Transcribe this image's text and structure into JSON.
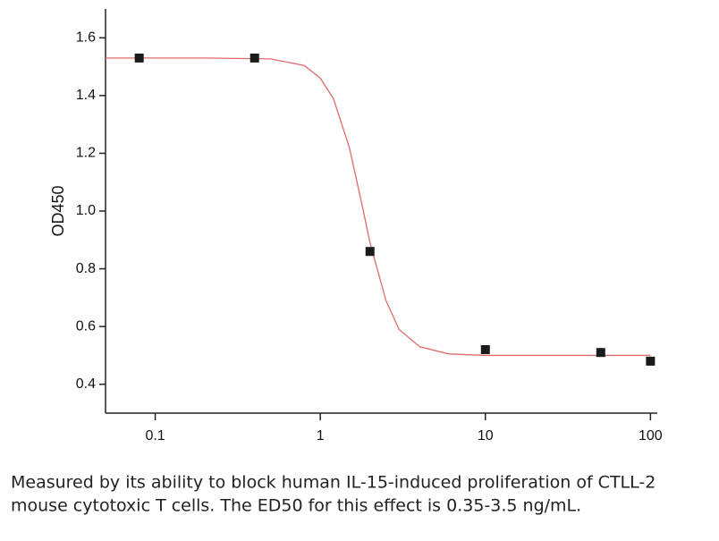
{
  "chart_data": {
    "type": "scatter",
    "y_label": "OD450",
    "x": [
      0.08,
      0.4,
      2,
      10,
      50,
      100
    ],
    "values": [
      1.53,
      1.53,
      0.86,
      0.52,
      0.51,
      0.48
    ],
    "color": "#1a1a1a",
    "fit": {
      "color": "#e06a6a",
      "x": [
        0.05,
        0.2,
        0.5,
        0.8,
        1,
        1.2,
        1.5,
        1.8,
        2,
        2.5,
        3,
        4,
        6,
        10,
        30,
        100
      ],
      "values": [
        1.53,
        1.53,
        1.527,
        1.504,
        1.46,
        1.39,
        1.22,
        1.015,
        0.89,
        0.69,
        0.59,
        0.53,
        0.505,
        0.5,
        0.5,
        0.5
      ]
    },
    "log_x": true,
    "xlim": [
      0.05,
      110
    ],
    "ylim": [
      0.3,
      1.7
    ],
    "xticks": [
      0.1,
      1,
      10,
      100
    ],
    "yticks": [
      0.4,
      0.6,
      0.8,
      {
        "value": 1,
        "label": "1.0"
      },
      1.2,
      1.4,
      1.6
    ],
    "caption": [
      "Measured by its ability to block human IL-15-induced proliferation of CTLL-2",
      "mouse cytotoxic T cells. The ED50 for this effect is 0.35-3.5 ng/mL."
    ]
  }
}
